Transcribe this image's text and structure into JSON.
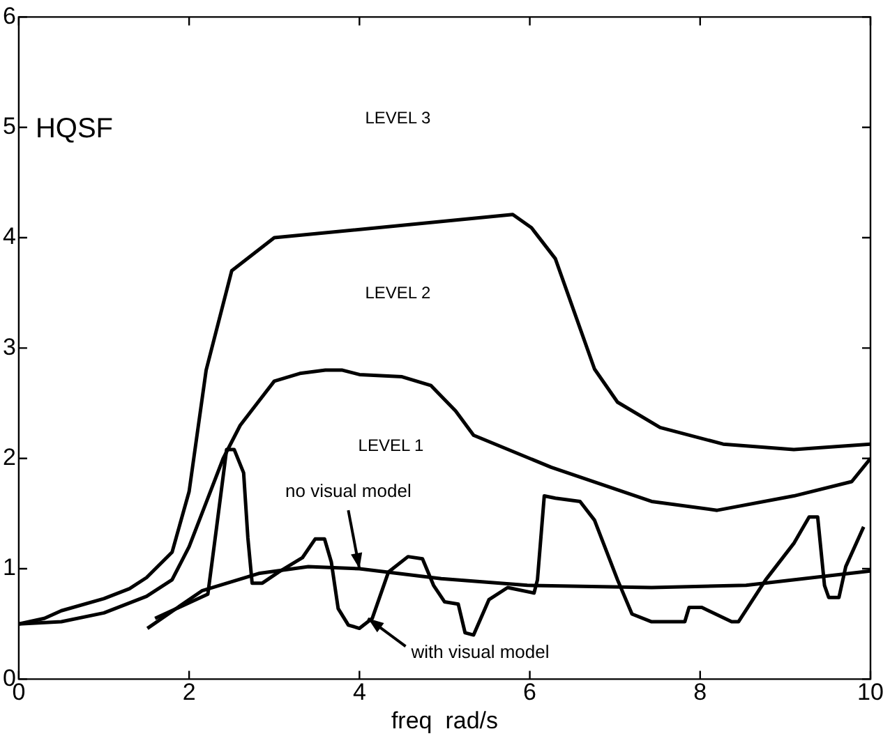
{
  "chart_data": {
    "type": "line",
    "xlabel": "freq  rad/s",
    "ylabel": "HQSF",
    "xlim": [
      0,
      10
    ],
    "ylim": [
      0,
      6
    ],
    "xticks": [
      0,
      2,
      4,
      6,
      8,
      10
    ],
    "yticks": [
      0,
      1,
      2,
      3,
      4,
      5,
      6
    ],
    "grid": false,
    "legend": false,
    "marker": "none",
    "line_style": "solid",
    "series": [
      {
        "color": "#000000",
        "x": [
          0,
          0.3,
          0.5,
          1,
          1.3,
          1.5,
          1.8,
          2.0,
          2.2,
          2.5,
          2.8,
          3.0,
          5.8,
          6.02,
          6.3,
          6.76,
          7.03,
          7.53,
          8.27,
          9.1,
          10
        ],
        "values": [
          0.5,
          0.55,
          0.62,
          0.73,
          0.82,
          0.92,
          1.15,
          1.7,
          2.8,
          3.7,
          3.88,
          4.0,
          4.21,
          4.09,
          3.81,
          2.81,
          2.51,
          2.28,
          2.13,
          2.08,
          2.13
        ]
      },
      {
        "color": "#000000",
        "x": [
          0,
          0.5,
          1,
          1.5,
          1.8,
          2.0,
          2.2,
          2.4,
          2.6,
          2.8,
          3.0,
          3.3,
          3.6,
          3.8,
          4.0,
          4.5,
          4.84,
          5.13,
          5.34,
          6.25,
          7.43,
          8.2,
          9.1,
          9.78,
          10
        ],
        "values": [
          0.5,
          0.52,
          0.6,
          0.75,
          0.9,
          1.2,
          1.6,
          2.0,
          2.3,
          2.5,
          2.7,
          2.77,
          2.8,
          2.8,
          2.76,
          2.74,
          2.66,
          2.43,
          2.21,
          1.92,
          1.61,
          1.53,
          1.66,
          1.79,
          2.0
        ]
      },
      {
        "color": "#000000",
        "x": [
          1.51,
          2.15,
          2.83,
          3.4,
          4.0,
          4.96,
          5.97,
          7.43,
          8.54,
          10
        ],
        "values": [
          0.46,
          0.8,
          0.96,
          1.02,
          1.0,
          0.91,
          0.85,
          0.83,
          0.85,
          0.98
        ]
      },
      {
        "color": "#000000",
        "x": [
          1.6,
          2.22,
          2.32,
          2.44,
          2.53,
          2.64,
          2.69,
          2.74,
          2.86,
          3.05,
          3.33,
          3.48,
          3.59,
          3.67,
          3.75,
          3.87,
          4.0,
          4.15,
          4.34,
          4.57,
          4.74,
          4.87,
          5.0,
          5.16,
          5.24,
          5.34,
          5.52,
          5.74,
          6.05,
          6.09,
          6.17,
          6.3,
          6.59,
          6.76,
          7.03,
          7.2,
          7.43,
          7.82,
          7.87,
          8.02,
          8.37,
          8.45,
          8.77,
          9.1,
          9.28,
          9.38,
          9.46,
          9.51,
          9.63,
          9.71,
          9.92
        ],
        "values": [
          0.55,
          0.77,
          1.36,
          2.08,
          2.08,
          1.87,
          1.28,
          0.87,
          0.87,
          0.97,
          1.1,
          1.27,
          1.27,
          1.06,
          0.64,
          0.49,
          0.46,
          0.55,
          0.97,
          1.11,
          1.09,
          0.85,
          0.7,
          0.68,
          0.42,
          0.4,
          0.72,
          0.83,
          0.78,
          0.9,
          1.66,
          1.64,
          1.61,
          1.44,
          0.9,
          0.59,
          0.52,
          0.52,
          0.65,
          0.65,
          0.52,
          0.52,
          0.9,
          1.23,
          1.47,
          1.47,
          0.85,
          0.74,
          0.74,
          1.02,
          1.38
        ]
      }
    ],
    "annotations": [
      "LEVEL 3",
      "LEVEL 2",
      "LEVEL 1",
      {
        "text": "no visual model",
        "x": 4.0,
        "y": 1.0
      },
      {
        "text": "with visual model",
        "x": 4.1,
        "y": 0.55
      }
    ]
  }
}
